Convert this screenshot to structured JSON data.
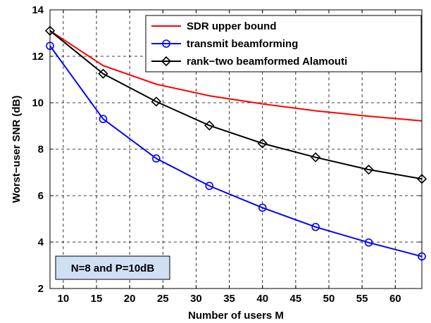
{
  "chart_data": {
    "type": "line",
    "title": "",
    "xlabel": "Number of users M",
    "ylabel": "Worst−user SNR  (dB)",
    "xlim": [
      8,
      64
    ],
    "ylim": [
      2,
      14
    ],
    "xticks": [
      10,
      15,
      20,
      25,
      30,
      35,
      40,
      45,
      50,
      55,
      60
    ],
    "yticks": [
      2,
      4,
      6,
      8,
      10,
      12,
      14
    ],
    "grid": true,
    "legend_position": "top-right",
    "annotation": "N=8 and P=10dB",
    "series": [
      {
        "name": "SDR upper bound",
        "color": "#ff0000",
        "marker": "none",
        "x": [
          8,
          16,
          24,
          32,
          40,
          48,
          56,
          64
        ],
        "y": [
          13.1,
          11.6,
          10.8,
          10.3,
          9.95,
          9.65,
          9.42,
          9.22
        ]
      },
      {
        "name": "transmit beamforming",
        "color": "#0000ff",
        "marker": "circle",
        "x": [
          8,
          16,
          24,
          32,
          40,
          48,
          56,
          64
        ],
        "y": [
          12.45,
          9.3,
          7.6,
          6.42,
          5.48,
          4.65,
          3.98,
          3.38
        ]
      },
      {
        "name": "rank−two beamformed Alamouti",
        "color": "#000000",
        "marker": "diamond",
        "x": [
          8,
          16,
          24,
          32,
          40,
          48,
          56,
          64
        ],
        "y": [
          13.1,
          11.25,
          10.05,
          9.02,
          8.25,
          7.65,
          7.12,
          6.72
        ]
      }
    ]
  }
}
